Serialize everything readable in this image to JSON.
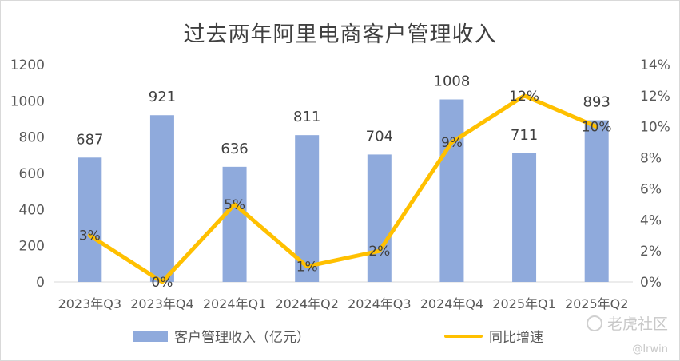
{
  "chart_data": {
    "type": "bar",
    "title": "过去两年阿里电商客户管理收入",
    "categories": [
      "2023年Q3",
      "2023年Q4",
      "2024年Q1",
      "2024年Q2",
      "2024年Q3",
      "2024年Q4",
      "2025年Q1",
      "2025年Q2"
    ],
    "series": [
      {
        "name": "客户管理收入（亿元）",
        "type": "bar",
        "axis": "left",
        "color": "#8faadc",
        "values": [
          687,
          921,
          636,
          811,
          704,
          1008,
          711,
          893
        ],
        "labels": [
          "687",
          "921",
          "636",
          "811",
          "704",
          "1008",
          "711",
          "893"
        ]
      },
      {
        "name": "同比增速",
        "type": "line",
        "axis": "right",
        "color": "#ffc000",
        "values": [
          3,
          0,
          5,
          1,
          2,
          9,
          12,
          10
        ],
        "labels": [
          "3%",
          "0%",
          "5%",
          "1%",
          "2%",
          "9%",
          "12%",
          "10%"
        ]
      }
    ],
    "y_left": {
      "min": 0,
      "max": 1200,
      "ticks": [
        "0",
        "200",
        "400",
        "600",
        "800",
        "1000",
        "1200"
      ]
    },
    "y_right": {
      "min": 0,
      "max": 14,
      "ticks": [
        "0%",
        "2%",
        "4%",
        "6%",
        "8%",
        "10%",
        "12%",
        "14%"
      ]
    },
    "grid": false,
    "legend": "bottom"
  },
  "watermark": {
    "brand": "老虎社区",
    "user": "@Irwin",
    "icon": "tiger-logo-icon"
  }
}
